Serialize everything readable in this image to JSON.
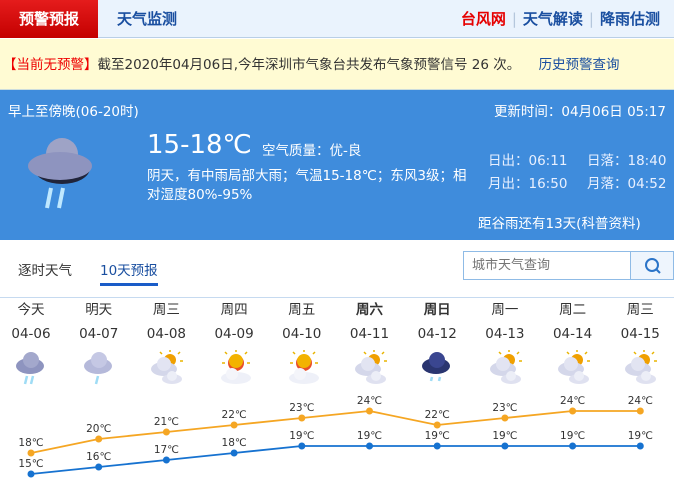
{
  "nav": {
    "active": "预警预报",
    "monitor": "天气监测",
    "right": [
      "台风网",
      "天气解读",
      "降雨估测"
    ]
  },
  "warning": {
    "tag": "【当前无预警】",
    "text": "截至2020年04月06日,今年深圳市气象台共发布气象预警信号 26 次。",
    "history_link": "历史预警查询"
  },
  "today": {
    "period": "早上至傍晚(06-20时)",
    "updated": "更新时间：04月06日 05:17",
    "temp": "15-18℃",
    "aqi": "空气质量：优-良",
    "desc1": "阴天，有中雨局部大雨；气温15-18℃；东风3级；相",
    "desc2": "对湿度80%-95%",
    "sunrise": "日出：06:11",
    "sunset": "日落：18:40",
    "moonrise": "月出：16:50",
    "moonset": "月落：04:52",
    "solar_term": "距谷雨还有13天(科普资料)",
    "icon": "heavy-rain-icon"
  },
  "tabs": [
    "逐时天气",
    "10天预报"
  ],
  "search": {
    "placeholder": "城市天气查询"
  },
  "colors": {
    "high": "#f5a623",
    "low": "#1672d0",
    "panel": "#3f8cdc"
  },
  "forecast": [
    {
      "day": "今天",
      "date": "04-06",
      "icon": "heavy-rain",
      "high": "18℃",
      "low": "15℃",
      "hi": 18,
      "lo": 15
    },
    {
      "day": "明天",
      "date": "04-07",
      "icon": "light-rain",
      "high": "20℃",
      "low": "16℃",
      "hi": 20,
      "lo": 16
    },
    {
      "day": "周三",
      "date": "04-08",
      "icon": "partly-cloudy",
      "high": "21℃",
      "low": "17℃",
      "hi": 21,
      "lo": 17
    },
    {
      "day": "周四",
      "date": "04-09",
      "icon": "sunny-cloud",
      "high": "22℃",
      "low": "18℃",
      "hi": 22,
      "lo": 18
    },
    {
      "day": "周五",
      "date": "04-10",
      "icon": "sunny-cloud",
      "high": "23℃",
      "low": "19℃",
      "hi": 23,
      "lo": 19
    },
    {
      "day": "周六",
      "date": "04-11",
      "icon": "partly-cloudy",
      "high": "24℃",
      "low": "19℃",
      "hi": 24,
      "lo": 19,
      "bold": true
    },
    {
      "day": "周日",
      "date": "04-12",
      "icon": "dark-rain",
      "high": "22℃",
      "low": "19℃",
      "hi": 22,
      "lo": 19,
      "bold": true
    },
    {
      "day": "周一",
      "date": "04-13",
      "icon": "partly-cloudy",
      "high": "23℃",
      "low": "19℃",
      "hi": 23,
      "lo": 19
    },
    {
      "day": "周二",
      "date": "04-14",
      "icon": "partly-cloudy",
      "high": "24℃",
      "low": "19℃",
      "hi": 24,
      "lo": 19
    },
    {
      "day": "周三",
      "date": "04-15",
      "icon": "partly-cloudy",
      "high": "24℃",
      "low": "19℃",
      "hi": 24,
      "lo": 19
    }
  ]
}
